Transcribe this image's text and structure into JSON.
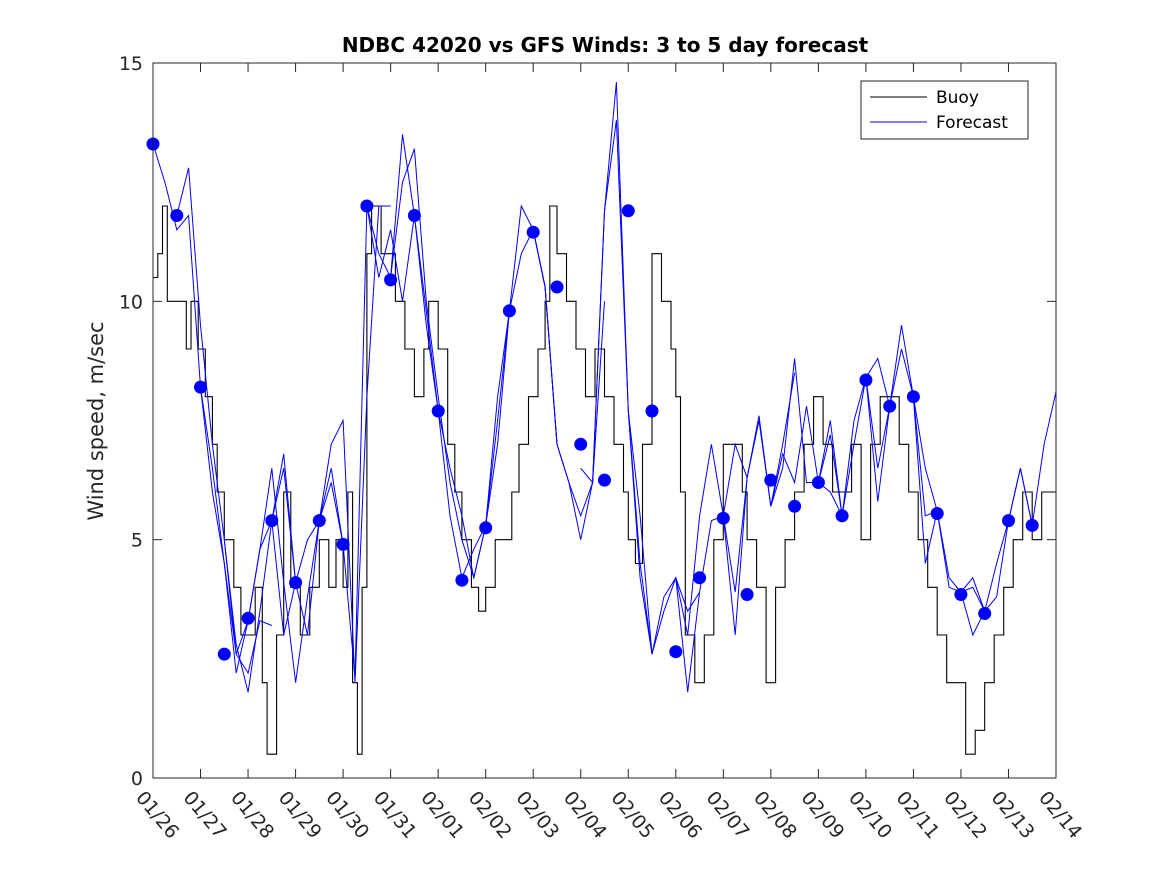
{
  "chart_data": {
    "type": "line",
    "title": "NDBC 42020 vs GFS Winds: 3 to 5 day forecast",
    "xlabel": "",
    "ylabel": "Wind speed, m/sec",
    "xlim": [
      0,
      19
    ],
    "ylim": [
      0,
      15
    ],
    "yticks": [
      0,
      5,
      10,
      15
    ],
    "ytick_labels": [
      "0",
      "5",
      "10",
      "15"
    ],
    "xticks": [
      0,
      1,
      2,
      3,
      4,
      5,
      6,
      7,
      8,
      9,
      10,
      11,
      12,
      13,
      14,
      15,
      16,
      17,
      18,
      19
    ],
    "xtick_labels": [
      "01/26",
      "01/27",
      "01/28",
      "01/29",
      "01/30",
      "01/31",
      "02/01",
      "02/02",
      "02/03",
      "02/04",
      "02/05",
      "02/06",
      "02/07",
      "02/08",
      "02/09",
      "02/10",
      "02/11",
      "02/12",
      "02/13",
      "02/14"
    ],
    "colors": {
      "buoy": "#000000",
      "forecast": "#0000ff",
      "marker": "#0000ff"
    },
    "legend": {
      "position": "top-right",
      "entries": [
        "Buoy",
        "Forecast"
      ]
    },
    "buoy": {
      "x": [
        0,
        0.1,
        0.2,
        0.3,
        0.5,
        0.7,
        0.8,
        0.95,
        1.1,
        1.25,
        1.35,
        1.5,
        1.7,
        1.85,
        2.0,
        2.15,
        2.3,
        2.4,
        2.6,
        2.75,
        2.9,
        3.1,
        3.3,
        3.5,
        3.7,
        3.85,
        4.0,
        4.1,
        4.2,
        4.3,
        4.4,
        4.5,
        4.6,
        4.8,
        5.0,
        5.1,
        5.3,
        5.5,
        5.7,
        5.8,
        6.0,
        6.2,
        6.35,
        6.5,
        6.7,
        6.85,
        7.0,
        7.2,
        7.4,
        7.55,
        7.7,
        7.9,
        8.1,
        8.25,
        8.35,
        8.5,
        8.7,
        8.9,
        9.1,
        9.3,
        9.5,
        9.7,
        9.9,
        10.0,
        10.15,
        10.3,
        10.5,
        10.7,
        10.9,
        11.0,
        11.1,
        11.2,
        11.4,
        11.6,
        11.8,
        12.0,
        12.2,
        12.4,
        12.5,
        12.7,
        12.9,
        13.1,
        13.3,
        13.5,
        13.7,
        13.9,
        14.1,
        14.3,
        14.5,
        14.7,
        14.9,
        15.1,
        15.3,
        15.5,
        15.7,
        15.9,
        16.1,
        16.3,
        16.5,
        16.7,
        16.9,
        17.1,
        17.3,
        17.5,
        17.7,
        17.9,
        18.1,
        18.3,
        18.5,
        18.7,
        19.0
      ],
      "y": [
        10.5,
        11,
        12,
        10,
        10,
        9,
        10,
        9,
        8,
        7,
        6,
        5,
        4,
        3,
        3,
        4,
        2,
        0.5,
        3,
        6,
        4,
        3,
        4,
        5,
        4,
        5,
        4,
        6,
        2,
        0.5,
        4,
        11,
        12,
        11,
        11,
        10,
        9,
        8,
        9,
        10,
        9,
        7,
        6,
        5,
        4,
        3.5,
        4,
        5,
        5,
        6,
        7,
        8,
        9,
        10,
        12,
        11,
        10,
        9,
        8,
        9,
        8,
        7,
        6,
        5,
        4.5,
        7,
        11,
        10,
        9,
        8,
        6,
        3,
        2,
        3,
        5,
        7,
        7,
        6,
        5,
        4,
        2,
        4,
        5,
        6,
        7,
        8,
        7,
        6,
        6,
        7,
        5,
        7,
        8,
        8,
        7,
        6,
        5,
        4,
        3,
        2,
        2,
        0.5,
        1,
        2,
        3,
        4,
        5,
        6,
        5,
        6,
        6
      ]
    },
    "forecast_runs": [
      {
        "x": [
          0,
          0.25,
          0.5,
          0.75,
          1.0,
          1.25,
          1.5,
          1.75,
          2.0,
          2.25,
          2.5
        ],
        "y": [
          13.3,
          12.5,
          11.5,
          11.8,
          8.2,
          6.0,
          4.5,
          2.6,
          2.2,
          3.3,
          3.2
        ]
      },
      {
        "x": [
          0.5,
          0.75,
          1.0,
          1.25,
          1.5,
          1.75,
          2.0,
          2.25,
          2.5,
          2.75,
          3.0
        ],
        "y": [
          11.8,
          12.8,
          9.5,
          7.0,
          5.0,
          2.8,
          1.8,
          3.5,
          5.4,
          6.5,
          4.1
        ]
      },
      {
        "x": [
          1.0,
          1.25,
          1.5,
          1.75,
          2.0,
          2.25,
          2.5,
          2.75,
          3.0,
          3.25,
          3.5
        ],
        "y": [
          8.2,
          6.5,
          4.5,
          2.2,
          3.3,
          4.8,
          5.4,
          3.0,
          4.1,
          5.0,
          5.4
        ]
      },
      {
        "x": [
          1.5,
          1.75,
          2.0,
          2.25,
          2.5,
          2.75,
          3.0,
          3.25,
          3.5,
          3.75,
          4.0
        ],
        "y": [
          5.0,
          2.6,
          3.3,
          4.8,
          6.5,
          4.1,
          2.0,
          3.8,
          5.4,
          6.2,
          4.9
        ]
      },
      {
        "x": [
          2.5,
          2.75,
          3.0,
          3.25,
          3.5,
          3.75,
          4.0,
          4.25,
          4.5,
          4.75,
          5.0
        ],
        "y": [
          5.4,
          6.8,
          4.1,
          3.0,
          5.4,
          7.0,
          7.5,
          2.0,
          8.0,
          12.0,
          12.0
        ]
      },
      {
        "x": [
          3.5,
          3.75,
          4.0,
          4.25,
          4.5,
          4.75,
          5.0,
          5.25,
          5.5,
          5.75,
          6.0
        ],
        "y": [
          5.4,
          6.5,
          4.9,
          2.1,
          12.0,
          11.0,
          10.5,
          13.5,
          11.8,
          9.5,
          7.7
        ]
      },
      {
        "x": [
          4.5,
          4.75,
          5.0,
          5.25,
          5.5,
          5.75,
          6.0,
          6.25,
          6.5,
          6.75,
          7.0
        ],
        "y": [
          12.0,
          10.5,
          11.5,
          10.0,
          11.8,
          9.8,
          7.7,
          5.5,
          4.2,
          4.8,
          5.3
        ]
      },
      {
        "x": [
          5.0,
          5.25,
          5.5,
          5.75,
          6.0,
          6.25,
          6.5,
          6.75,
          7.0,
          7.25,
          7.5
        ],
        "y": [
          10.5,
          12.5,
          13.2,
          10.0,
          8.0,
          6.2,
          5.0,
          4.2,
          5.3,
          7.0,
          9.8
        ]
      },
      {
        "x": [
          6.0,
          6.25,
          6.5,
          6.75,
          7.0,
          7.25,
          7.5,
          7.75,
          8.0,
          8.25,
          8.5
        ],
        "y": [
          7.7,
          6.5,
          5.5,
          4.2,
          5.3,
          7.5,
          9.8,
          11.0,
          11.5,
          10.3,
          7.0
        ]
      },
      {
        "x": [
          7.0,
          7.25,
          7.5,
          7.75,
          8.0,
          8.25,
          8.5,
          8.75,
          9.0,
          9.25,
          9.5
        ],
        "y": [
          5.3,
          8.0,
          9.8,
          12.0,
          11.5,
          10.3,
          7.0,
          6.2,
          5.5,
          6.2,
          10.0
        ]
      },
      {
        "x": [
          8.0,
          8.25,
          8.5,
          8.75,
          9.0,
          9.25,
          9.5,
          9.75,
          10.0,
          10.25,
          10.5
        ],
        "y": [
          11.5,
          10.3,
          7.0,
          6.2,
          5.0,
          6.2,
          11.9,
          13.8,
          7.7,
          4.5,
          2.6
        ]
      },
      {
        "x": [
          9.0,
          9.25,
          9.5,
          9.75,
          10.0,
          10.25,
          10.5,
          10.75,
          11.0,
          11.25,
          11.5
        ],
        "y": [
          6.5,
          6.2,
          11.9,
          14.6,
          7.7,
          4.2,
          2.6,
          3.5,
          4.2,
          3.5,
          3.9
        ]
      },
      {
        "x": [
          10.0,
          10.25,
          10.5,
          10.75,
          11.0,
          11.25,
          11.5,
          11.75,
          12.0,
          12.25,
          12.5
        ],
        "y": [
          7.7,
          5.5,
          2.6,
          3.8,
          4.2,
          1.8,
          3.9,
          5.4,
          5.5,
          7.0,
          6.3
        ]
      },
      {
        "x": [
          11.0,
          11.25,
          11.5,
          11.75,
          12.0,
          12.25,
          12.5,
          12.75,
          13.0,
          13.25,
          13.5
        ],
        "y": [
          4.2,
          3.0,
          5.5,
          7.0,
          5.5,
          3.0,
          6.3,
          7.5,
          5.7,
          7.0,
          8.5
        ]
      },
      {
        "x": [
          12.0,
          12.25,
          12.5,
          12.75,
          13.0,
          13.25,
          13.5,
          13.75,
          14.0,
          14.25,
          14.5
        ],
        "y": [
          5.5,
          3.9,
          6.3,
          7.6,
          5.7,
          6.5,
          8.8,
          6.2,
          6.2,
          7.5,
          5.5
        ]
      },
      {
        "x": [
          13.0,
          13.25,
          13.5,
          13.75,
          14.0,
          14.25,
          14.5,
          14.75,
          15.0,
          15.25,
          15.5
        ],
        "y": [
          5.7,
          6.8,
          6.2,
          7.8,
          6.2,
          6.0,
          5.5,
          7.5,
          8.4,
          6.5,
          7.8
        ]
      },
      {
        "x": [
          14.0,
          14.25,
          14.5,
          14.75,
          15.0,
          15.25,
          15.5,
          15.75,
          16.0,
          16.25,
          16.5
        ],
        "y": [
          6.2,
          7.2,
          5.5,
          7.0,
          8.4,
          8.8,
          7.8,
          9.0,
          8.0,
          5.5,
          5.6
        ]
      },
      {
        "x": [
          15.0,
          15.25,
          15.5,
          15.75,
          16.0,
          16.25,
          16.5,
          16.75,
          17.0,
          17.25,
          17.5
        ],
        "y": [
          8.4,
          5.8,
          7.8,
          9.5,
          8.0,
          6.5,
          5.6,
          4.2,
          3.9,
          4.0,
          3.5
        ]
      },
      {
        "x": [
          16.0,
          16.25,
          16.5,
          16.75,
          17.0,
          17.25,
          17.5,
          17.75,
          18.0,
          18.25,
          18.5
        ],
        "y": [
          8.0,
          4.5,
          5.6,
          4.0,
          3.9,
          4.2,
          3.5,
          3.8,
          5.4,
          6.5,
          5.3
        ]
      },
      {
        "x": [
          17.0,
          17.25,
          17.5,
          17.75,
          18.0,
          18.25,
          18.5,
          18.75,
          19.0
        ],
        "y": [
          3.9,
          3.0,
          3.5,
          4.5,
          5.4,
          6.5,
          5.3,
          7.0,
          8.1
        ]
      }
    ],
    "markers": {
      "x": [
        0,
        0.5,
        1.0,
        1.5,
        2.0,
        2.5,
        3.0,
        3.5,
        4.0,
        4.5,
        5.0,
        5.5,
        6.0,
        6.5,
        7.0,
        7.5,
        8.0,
        8.5,
        9.0,
        9.5,
        10.0,
        10.5,
        11.0,
        11.5,
        12.0,
        12.5,
        13.0,
        13.5,
        14.0,
        14.5,
        15.0,
        15.5,
        16.0,
        16.5,
        17.0,
        17.5,
        18.0,
        18.5
      ],
      "y": [
        13.3,
        11.8,
        8.2,
        2.6,
        3.35,
        5.4,
        4.1,
        5.4,
        4.9,
        12.0,
        10.45,
        11.8,
        7.7,
        4.15,
        5.25,
        9.8,
        11.45,
        10.3,
        7.0,
        6.25,
        11.9,
        7.7,
        2.65,
        4.2,
        5.45,
        3.85,
        6.25,
        5.7,
        6.2,
        5.5,
        8.35,
        7.8,
        8.0,
        5.55,
        3.85,
        3.45,
        5.4,
        5.3
      ]
    }
  }
}
